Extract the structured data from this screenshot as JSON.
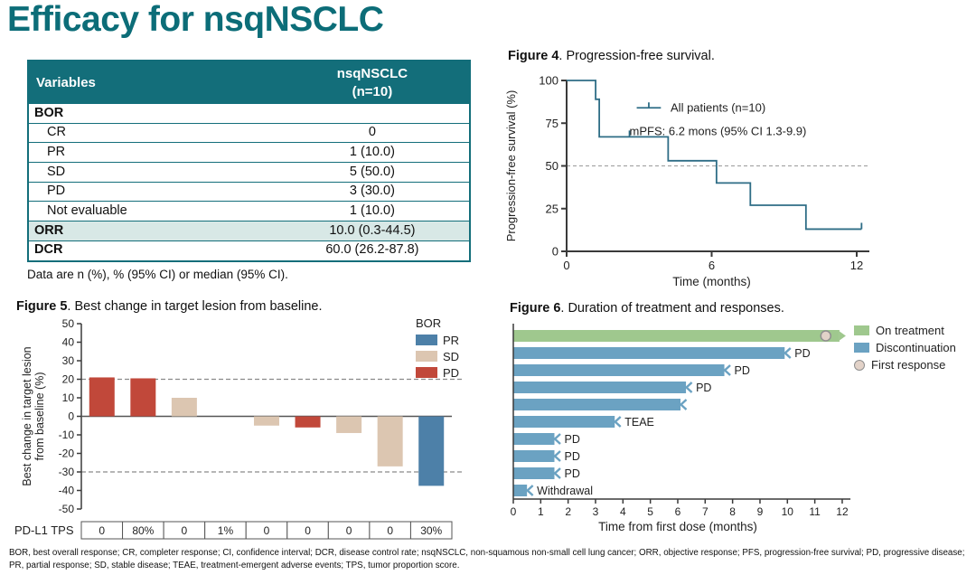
{
  "page": {
    "title": "Efficacy for nsqNSCLC",
    "footnote": "BOR, best overall response; CR, completer response; CI, confidence interval; DCR, disease control rate; nsqNSCLC, non-squamous non-small cell lung cancer; ORR, objective response; PFS, progression-free survival; PD, progressive disease; PR, partial response; SD, stable disease; TEAE, treatment-emergent adverse events; TPS, tumor proportion score."
  },
  "colors": {
    "title_teal": "#0c6d78",
    "table_header_bg": "#136e7a",
    "table_highlight_bg": "#d8e8e6",
    "km_line": "#2e6d86",
    "pr_blue": "#4d80a8",
    "sd_tan": "#dcc6b1",
    "pd_red": "#c1483a",
    "on_treatment_green": "#9fc88e",
    "discontinuation_blue": "#6ba2c2",
    "first_response_fill": "#e2d2c8",
    "first_response_stroke": "#8f8f8f",
    "axis": "#3a3a3a",
    "dash": "#9a9a9a"
  },
  "table": {
    "col1_header": "Variables",
    "col2_header_line1": "nsqNSCLC",
    "col2_header_line2": "(n=10)",
    "rows": [
      {
        "label": "BOR",
        "value": "",
        "bold": true,
        "indent": false,
        "highlight": false
      },
      {
        "label": "CR",
        "value": "0",
        "bold": false,
        "indent": true,
        "highlight": false
      },
      {
        "label": "PR",
        "value": "1 (10.0)",
        "bold": false,
        "indent": true,
        "highlight": false
      },
      {
        "label": "SD",
        "value": "5 (50.0)",
        "bold": false,
        "indent": true,
        "highlight": false
      },
      {
        "label": "PD",
        "value": "3 (30.0)",
        "bold": false,
        "indent": true,
        "highlight": false
      },
      {
        "label": "Not evaluable",
        "value": "1 (10.0)",
        "bold": false,
        "indent": true,
        "highlight": false
      },
      {
        "label": "ORR",
        "value": "10.0 (0.3-44.5)",
        "bold": true,
        "indent": false,
        "highlight": true
      },
      {
        "label": "DCR",
        "value": "60.0 (26.2-87.8)",
        "bold": true,
        "indent": false,
        "highlight": false
      }
    ],
    "note": "Data are n (%), % (95% CI) or median (95% CI)."
  },
  "chart_data": [
    {
      "id": "figure4_pfs",
      "type": "line",
      "subtype": "kaplan_meier_step",
      "figure_label": "Figure 4",
      "title": ". Progression-free survival.",
      "xlabel": "Time (months)",
      "ylabel": "Progression-free survival (%)",
      "xlim": [
        0,
        12.6
      ],
      "ylim": [
        0,
        100
      ],
      "xticks": [
        0,
        6,
        12
      ],
      "yticks": [
        0,
        25,
        50,
        75,
        100
      ],
      "median_reference_y": 50,
      "annotation": "mPFS: 6.2 mons (95% CI 1.3-9.9)",
      "legend": [
        {
          "label": "All patients (n=10)",
          "marker": "km-censor-line"
        }
      ],
      "series": [
        {
          "name": "All patients (n=10)",
          "steps": [
            [
              0,
              100
            ],
            [
              1.2,
              100
            ],
            [
              1.2,
              89
            ],
            [
              1.35,
              89
            ],
            [
              1.35,
              67
            ],
            [
              4.2,
              67
            ],
            [
              4.2,
              53
            ],
            [
              6.2,
              53
            ],
            [
              6.2,
              40
            ],
            [
              7.6,
              40
            ],
            [
              7.6,
              27
            ],
            [
              9.9,
              27
            ],
            [
              9.9,
              13
            ],
            [
              12.2,
              13
            ]
          ],
          "censor_marks": [
            [
              2.6,
              67
            ],
            [
              12.2,
              13
            ]
          ]
        }
      ]
    },
    {
      "id": "figure5_waterfall",
      "type": "bar",
      "subtype": "waterfall",
      "figure_label": "Figure 5",
      "title": ". Best change in target lesion from baseline.",
      "ylabel_lines": [
        "Best change in target lesion",
        "from baseline (%)"
      ],
      "ylim": [
        -50,
        50
      ],
      "yticks": [
        50,
        40,
        30,
        20,
        10,
        0,
        -10,
        -20,
        -30,
        -40,
        -50
      ],
      "reference_lines": [
        20,
        -30
      ],
      "legend_title": "BOR",
      "legend": [
        {
          "label": "PR",
          "color_key": "pr_blue"
        },
        {
          "label": "SD",
          "color_key": "sd_tan"
        },
        {
          "label": "PD",
          "color_key": "pd_red"
        }
      ],
      "tps_label": "PD-L1 TPS",
      "bars": [
        {
          "value": 21,
          "bor": "PD",
          "pdl1_tps": "0"
        },
        {
          "value": 20.5,
          "bor": "PD",
          "pdl1_tps": "80%"
        },
        {
          "value": 10,
          "bor": "SD",
          "pdl1_tps": "0"
        },
        {
          "value": 0,
          "bor": "SD",
          "pdl1_tps": "1%"
        },
        {
          "value": -5,
          "bor": "SD",
          "pdl1_tps": "0"
        },
        {
          "value": -6,
          "bor": "PD",
          "pdl1_tps": "0"
        },
        {
          "value": -9,
          "bor": "SD",
          "pdl1_tps": "0"
        },
        {
          "value": -27,
          "bor": "SD",
          "pdl1_tps": "0"
        },
        {
          "value": -37.5,
          "bor": "PR",
          "pdl1_tps": "30%"
        }
      ]
    },
    {
      "id": "figure6_swimmer",
      "type": "bar",
      "subtype": "swimmer",
      "figure_label": "Figure 6",
      "title": ". Duration of treatment and responses.",
      "xlabel": "Time from first dose (months)",
      "xlim": [
        0,
        12.4
      ],
      "xticks": [
        0,
        1,
        2,
        3,
        4,
        5,
        6,
        7,
        8,
        9,
        10,
        11,
        12
      ],
      "legend": [
        {
          "label": "On treatment",
          "color_key": "on_treatment_green",
          "marker": "square"
        },
        {
          "label": "Discontinuation",
          "color_key": "discontinuation_blue",
          "marker": "square"
        },
        {
          "label": "First response",
          "color_key": "first_response_fill",
          "marker": "circle"
        }
      ],
      "bars": [
        {
          "duration": 11.9,
          "status": "on_treatment",
          "end_label": "",
          "first_response_x": 11.4,
          "ongoing": true
        },
        {
          "duration": 9.9,
          "status": "discontinuation",
          "end_label": "PD"
        },
        {
          "duration": 7.7,
          "status": "discontinuation",
          "end_label": "PD"
        },
        {
          "duration": 6.3,
          "status": "discontinuation",
          "end_label": "PD"
        },
        {
          "duration": 6.1,
          "status": "discontinuation",
          "end_label": ""
        },
        {
          "duration": 3.7,
          "status": "discontinuation",
          "end_label": "TEAE"
        },
        {
          "duration": 1.5,
          "status": "discontinuation",
          "end_label": "PD"
        },
        {
          "duration": 1.5,
          "status": "discontinuation",
          "end_label": "PD"
        },
        {
          "duration": 1.5,
          "status": "discontinuation",
          "end_label": "PD"
        },
        {
          "duration": 0.5,
          "status": "discontinuation",
          "end_label": "Withdrawal"
        }
      ]
    }
  ]
}
